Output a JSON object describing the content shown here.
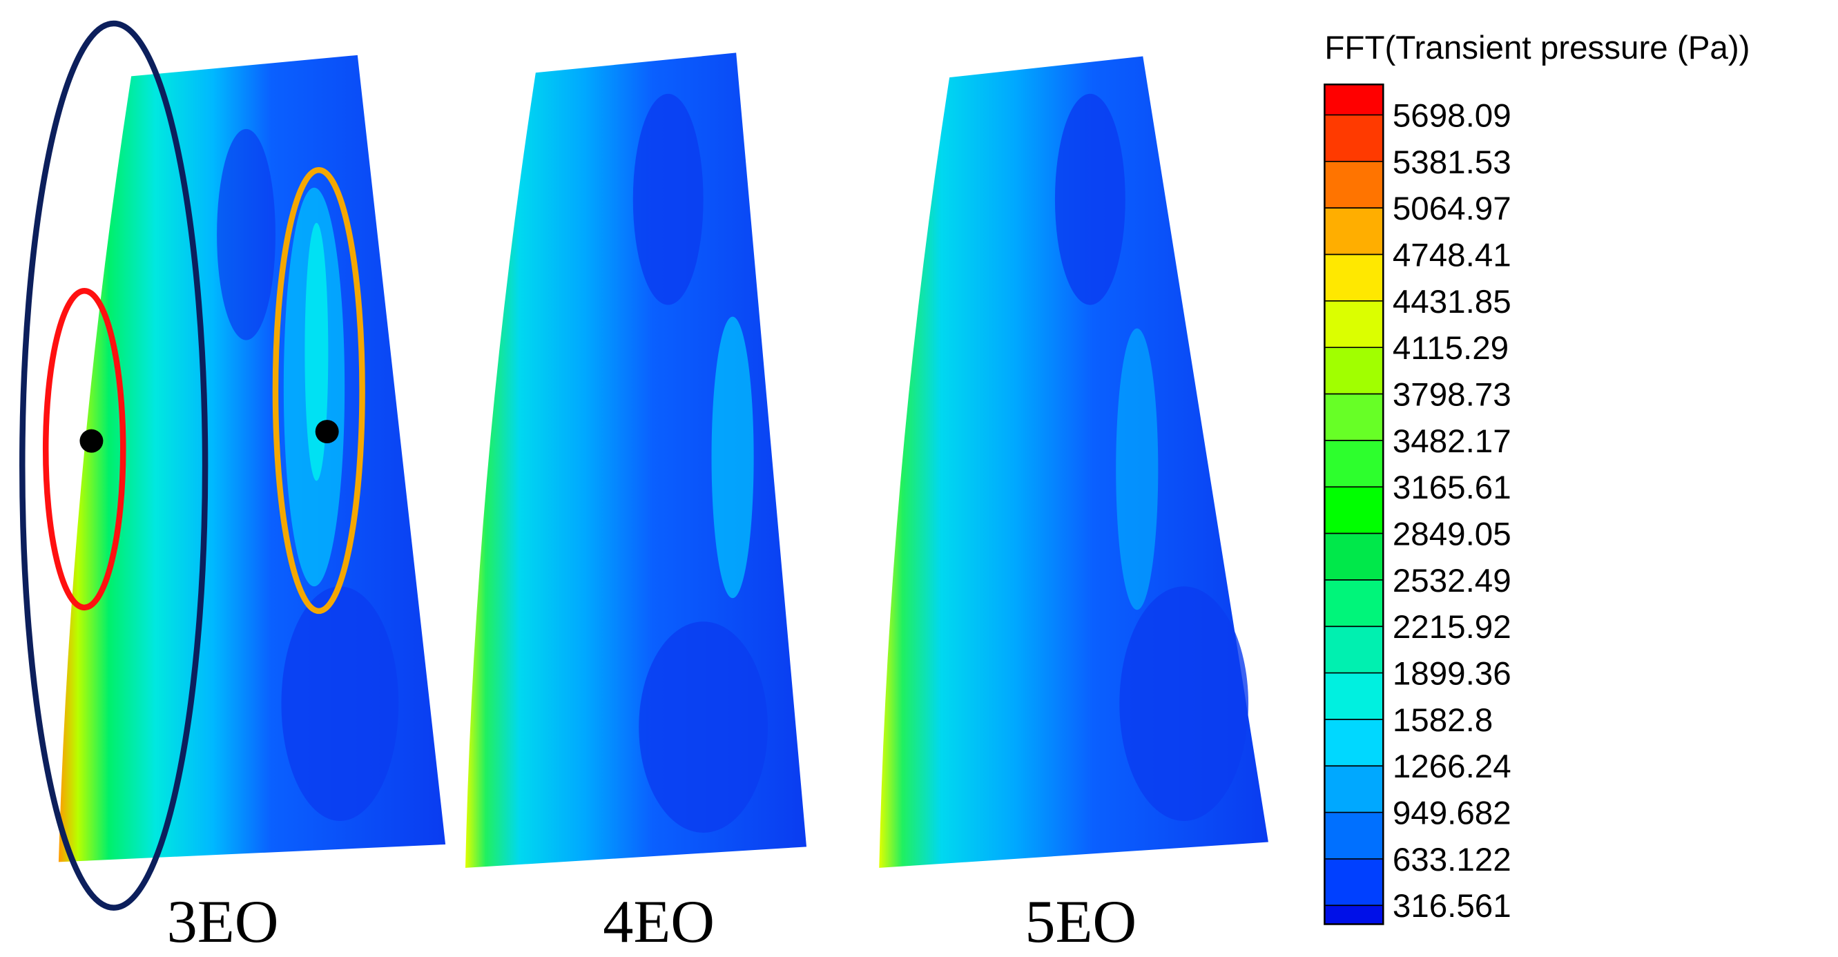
{
  "legend": {
    "title": "FFT(Transient pressure (Pa))",
    "levels": [
      "5698.09",
      "5381.53",
      "5064.97",
      "4748.41",
      "4431.85",
      "4115.29",
      "3798.73",
      "3482.17",
      "3165.61",
      "2849.05",
      "2532.49",
      "2215.92",
      "1899.36",
      "1582.8",
      "1266.24",
      "949.682",
      "633.122",
      "316.561"
    ],
    "colors": [
      "#ff0000",
      "#ff3a00",
      "#ff7400",
      "#ffae00",
      "#ffe800",
      "#dbff00",
      "#a1ff00",
      "#67ff26",
      "#2dff2d",
      "#00ff00",
      "#00e84a",
      "#00f57a",
      "#00f0b0",
      "#00f0e0",
      "#00d8ff",
      "#00a8ff",
      "#0070ff",
      "#0040ff",
      "#0010e8"
    ]
  },
  "panels": [
    {
      "label": "3EO"
    },
    {
      "label": "4EO"
    },
    {
      "label": "5EO"
    }
  ]
}
